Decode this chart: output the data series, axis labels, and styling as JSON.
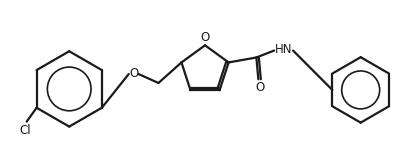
{
  "bg_color": "#ffffff",
  "line_color": "#1a1a1a",
  "line_width": 1.6,
  "figsize": [
    4.18,
    1.61
  ],
  "dpi": 100,
  "Cl_label": "Cl",
  "O_label": "O",
  "NH_label": "HN",
  "carbonyl_O": "O",
  "font_size": 8.5
}
